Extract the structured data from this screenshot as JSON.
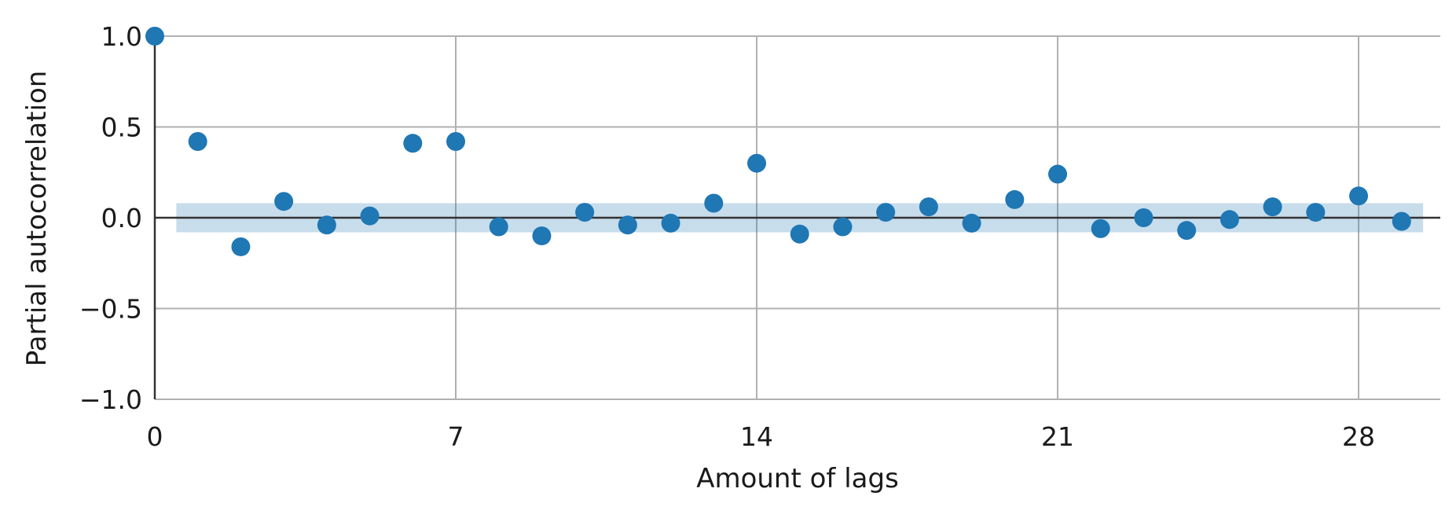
{
  "chart_data": {
    "type": "scatter",
    "xlabel": "Amount of lags",
    "ylabel": "Partial autocorrelation",
    "xlim": [
      0,
      29.9
    ],
    "ylim": [
      -1.0,
      1.0
    ],
    "x_ticks": [
      0,
      7,
      14,
      21,
      28
    ],
    "y_ticks": [
      1.0,
      0.5,
      0.0,
      -0.5,
      -1.0
    ],
    "x_tick_labels": [
      "0",
      "7",
      "14",
      "21",
      "28"
    ],
    "y_tick_labels": [
      "1.0",
      "0.5",
      "0.0",
      "−0.5",
      "−1.0"
    ],
    "grid": true,
    "point_color": "#1f77b4",
    "confidence_band_color": "#1f77b4",
    "confidence_band": {
      "x_start": 0.5,
      "x_end": 29.5,
      "lower": -0.08,
      "upper": 0.08
    },
    "series": [
      {
        "x": [
          0,
          1,
          2,
          3,
          4,
          5,
          6,
          7,
          8,
          9,
          10,
          11,
          12,
          13,
          14,
          15,
          16,
          17,
          18,
          19,
          20,
          21,
          22,
          23,
          24,
          25,
          26,
          27,
          28,
          29
        ],
        "values": [
          1.0,
          0.42,
          -0.16,
          0.09,
          -0.04,
          0.01,
          0.41,
          0.42,
          -0.05,
          -0.1,
          0.03,
          -0.04,
          -0.03,
          0.08,
          0.3,
          -0.09,
          -0.05,
          0.03,
          0.06,
          -0.03,
          0.1,
          0.24,
          -0.06,
          0.0,
          -0.07,
          -0.01,
          0.06,
          0.03,
          0.12,
          -0.02
        ]
      }
    ]
  }
}
